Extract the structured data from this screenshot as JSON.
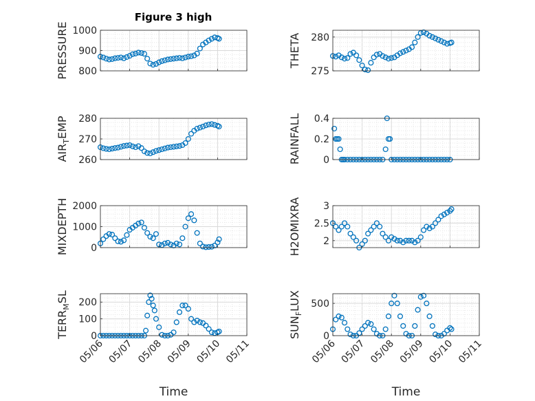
{
  "figure": {
    "title": "Figure 3 high",
    "marker_color": "#0072bd"
  },
  "chart_data": [
    {
      "type": "scatter",
      "id": "pressure",
      "ylabel": "PRESSURE",
      "ylim": [
        800,
        1000
      ],
      "yticks": [
        800,
        900,
        1000
      ],
      "grid": true,
      "x_days_from_0506": [
        0.0,
        0.1,
        0.2,
        0.3,
        0.4,
        0.5,
        0.6,
        0.7,
        0.8,
        0.9,
        1.0,
        1.1,
        1.2,
        1.3,
        1.4,
        1.5,
        1.6,
        1.7,
        1.8,
        1.9,
        2.0,
        2.1,
        2.2,
        2.3,
        2.4,
        2.5,
        2.6,
        2.7,
        2.8,
        2.9,
        3.0,
        3.1,
        3.2,
        3.3,
        3.4,
        3.5,
        3.6,
        3.7,
        3.8,
        3.9,
        4.0,
        4.05
      ],
      "y": [
        870,
        866,
        860,
        856,
        858,
        862,
        864,
        866,
        862,
        868,
        874,
        882,
        885,
        890,
        888,
        884,
        860,
        836,
        830,
        834,
        842,
        848,
        852,
        856,
        858,
        860,
        862,
        864,
        862,
        866,
        870,
        872,
        876,
        885,
        910,
        930,
        940,
        950,
        958,
        965,
        962,
        958
      ]
    },
    {
      "type": "scatter",
      "id": "theta",
      "ylabel": "THETA",
      "ylim": [
        275,
        281
      ],
      "yticks": [
        275,
        280
      ],
      "grid": true,
      "x_days_from_0506": [
        0.0,
        0.1,
        0.2,
        0.3,
        0.4,
        0.5,
        0.6,
        0.7,
        0.8,
        0.9,
        1.0,
        1.1,
        1.2,
        1.3,
        1.4,
        1.5,
        1.6,
        1.7,
        1.8,
        1.9,
        2.0,
        2.1,
        2.2,
        2.3,
        2.4,
        2.5,
        2.6,
        2.7,
        2.8,
        2.9,
        3.0,
        3.1,
        3.2,
        3.3,
        3.4,
        3.5,
        3.6,
        3.7,
        3.8,
        3.9,
        4.0,
        4.05
      ],
      "y": [
        277.2,
        277.1,
        277.3,
        277.0,
        276.8,
        276.9,
        277.5,
        277.7,
        277.3,
        276.6,
        275.8,
        275.2,
        275.1,
        276.2,
        277.0,
        277.4,
        277.5,
        277.2,
        277.0,
        276.8,
        276.9,
        277.0,
        277.3,
        277.6,
        277.8,
        278.0,
        278.2,
        278.5,
        279.2,
        280.0,
        280.6,
        280.7,
        280.5,
        280.2,
        280.0,
        279.8,
        279.6,
        279.4,
        279.2,
        279.0,
        279.1,
        279.2
      ]
    },
    {
      "type": "scatter",
      "id": "airtemp",
      "ylabel": "AIR_TEMP",
      "ylim": [
        260,
        280
      ],
      "yticks": [
        260,
        270,
        280
      ],
      "grid": true,
      "x_days_from_0506": [
        0.0,
        0.1,
        0.2,
        0.3,
        0.4,
        0.5,
        0.6,
        0.7,
        0.8,
        0.9,
        1.0,
        1.1,
        1.2,
        1.3,
        1.4,
        1.5,
        1.6,
        1.7,
        1.8,
        1.9,
        2.0,
        2.1,
        2.2,
        2.3,
        2.4,
        2.5,
        2.6,
        2.7,
        2.8,
        2.9,
        3.0,
        3.1,
        3.2,
        3.3,
        3.4,
        3.5,
        3.6,
        3.7,
        3.8,
        3.9,
        4.0,
        4.05
      ],
      "y": [
        266,
        265.5,
        265.2,
        265.0,
        265.3,
        265.6,
        265.8,
        266.2,
        266.6,
        266.8,
        267.0,
        266.4,
        266.0,
        266.5,
        265.6,
        264.0,
        263.2,
        263.0,
        263.6,
        264.2,
        264.6,
        265.0,
        265.4,
        265.8,
        266.0,
        266.2,
        266.4,
        266.6,
        267.0,
        268.0,
        270.0,
        272.5,
        274.0,
        275.0,
        275.5,
        276.0,
        276.6,
        277.0,
        277.2,
        276.8,
        276.4,
        276.0
      ]
    },
    {
      "type": "scatter",
      "id": "rainfall",
      "ylabel": "RAINFALL",
      "ylim": [
        0,
        0.4
      ],
      "yticks": [
        0,
        0.2,
        0.4
      ],
      "grid": true,
      "x_days_from_0506": [
        0.05,
        0.1,
        0.15,
        0.2,
        0.25,
        0.3,
        0.35,
        0.4,
        0.5,
        0.6,
        0.7,
        0.8,
        0.9,
        1.0,
        1.1,
        1.2,
        1.3,
        1.4,
        1.5,
        1.6,
        1.7,
        1.8,
        1.85,
        1.9,
        1.95,
        2.0,
        2.1,
        2.2,
        2.3,
        2.4,
        2.5,
        2.6,
        2.7,
        2.8,
        2.9,
        3.0,
        3.1,
        3.2,
        3.3,
        3.4,
        3.5,
        3.6,
        3.7,
        3.8,
        3.9,
        4.0
      ],
      "y": [
        0.3,
        0.2,
        0.2,
        0.2,
        0.1,
        0,
        0,
        0,
        0,
        0,
        0,
        0,
        0,
        0,
        0,
        0,
        0,
        0,
        0,
        0,
        0,
        0.1,
        0.4,
        0.2,
        0.2,
        0,
        0,
        0,
        0,
        0,
        0,
        0,
        0,
        0,
        0,
        0,
        0,
        0,
        0,
        0,
        0,
        0,
        0,
        0,
        0,
        0
      ]
    },
    {
      "type": "scatter",
      "id": "mixdepth",
      "ylabel": "MIXDEPTH",
      "ylim": [
        0,
        2000
      ],
      "yticks": [
        0,
        1000,
        2000
      ],
      "grid": true,
      "x_days_from_0506": [
        0.0,
        0.1,
        0.2,
        0.3,
        0.4,
        0.5,
        0.6,
        0.7,
        0.8,
        0.9,
        1.0,
        1.1,
        1.2,
        1.3,
        1.4,
        1.5,
        1.6,
        1.7,
        1.8,
        1.9,
        2.0,
        2.1,
        2.2,
        2.3,
        2.4,
        2.5,
        2.6,
        2.7,
        2.8,
        2.9,
        3.0,
        3.1,
        3.2,
        3.3,
        3.4,
        3.5,
        3.6,
        3.7,
        3.8,
        3.9,
        4.0,
        4.05
      ],
      "y": [
        200,
        400,
        550,
        650,
        620,
        450,
        300,
        280,
        350,
        600,
        850,
        950,
        1050,
        1150,
        1200,
        950,
        700,
        520,
        450,
        650,
        150,
        120,
        200,
        230,
        150,
        100,
        200,
        150,
        450,
        1000,
        1400,
        1600,
        1300,
        700,
        200,
        50,
        20,
        30,
        40,
        100,
        250,
        400
      ]
    },
    {
      "type": "scatter",
      "id": "h2omixra",
      "ylabel": "H2OMIXRA",
      "ylim": [
        1.8,
        3.0
      ],
      "yticks": [
        2,
        2.5,
        3
      ],
      "grid": true,
      "x_days_from_0506": [
        0.0,
        0.1,
        0.2,
        0.3,
        0.4,
        0.5,
        0.6,
        0.7,
        0.8,
        0.9,
        1.0,
        1.1,
        1.2,
        1.3,
        1.4,
        1.5,
        1.6,
        1.7,
        1.8,
        1.9,
        2.0,
        2.1,
        2.2,
        2.3,
        2.4,
        2.5,
        2.6,
        2.7,
        2.8,
        2.9,
        3.0,
        3.1,
        3.2,
        3.3,
        3.4,
        3.5,
        3.6,
        3.7,
        3.8,
        3.9,
        4.0,
        4.05
      ],
      "y": [
        2.5,
        2.4,
        2.3,
        2.4,
        2.5,
        2.4,
        2.2,
        2.1,
        2.0,
        1.8,
        1.9,
        2.0,
        2.2,
        2.3,
        2.4,
        2.5,
        2.4,
        2.2,
        2.1,
        2.0,
        2.1,
        2.05,
        2.0,
        2.0,
        1.95,
        2.0,
        2.0,
        2.0,
        1.95,
        2.0,
        2.1,
        2.3,
        2.4,
        2.35,
        2.4,
        2.5,
        2.6,
        2.7,
        2.75,
        2.8,
        2.85,
        2.9
      ]
    },
    {
      "type": "scatter",
      "id": "terrmsl",
      "ylabel": "TERR_MSL",
      "ylim": [
        0,
        250
      ],
      "yticks": [
        0,
        100,
        200
      ],
      "grid": true,
      "x_days_from_0506": [
        0.0,
        0.1,
        0.2,
        0.3,
        0.4,
        0.5,
        0.6,
        0.7,
        0.8,
        0.9,
        1.0,
        1.1,
        1.2,
        1.3,
        1.4,
        1.5,
        1.55,
        1.6,
        1.65,
        1.7,
        1.75,
        1.8,
        1.85,
        1.9,
        2.0,
        2.1,
        2.2,
        2.3,
        2.4,
        2.5,
        2.6,
        2.7,
        2.8,
        2.9,
        3.0,
        3.1,
        3.2,
        3.3,
        3.4,
        3.5,
        3.6,
        3.7,
        3.8,
        3.9,
        4.0,
        4.05
      ],
      "y": [
        0,
        0,
        0,
        0,
        0,
        0,
        0,
        0,
        0,
        0,
        0,
        0,
        0,
        0,
        0,
        0,
        30,
        120,
        200,
        240,
        220,
        180,
        150,
        100,
        50,
        5,
        0,
        0,
        5,
        20,
        80,
        140,
        180,
        180,
        160,
        100,
        80,
        90,
        80,
        75,
        60,
        40,
        20,
        15,
        20,
        25
      ]
    },
    {
      "type": "scatter",
      "id": "sunflux",
      "ylabel": "SUN_FLUX",
      "ylim": [
        0,
        650
      ],
      "yticks": [
        0,
        500
      ],
      "grid": true,
      "x_days_from_0506": [
        0.0,
        0.1,
        0.2,
        0.3,
        0.4,
        0.5,
        0.6,
        0.7,
        0.8,
        0.9,
        1.0,
        1.1,
        1.2,
        1.3,
        1.4,
        1.5,
        1.6,
        1.7,
        1.8,
        1.9,
        2.0,
        2.1,
        2.2,
        2.3,
        2.4,
        2.5,
        2.6,
        2.7,
        2.8,
        2.9,
        3.0,
        3.1,
        3.2,
        3.3,
        3.4,
        3.5,
        3.6,
        3.7,
        3.8,
        3.9,
        4.0,
        4.05
      ],
      "y": [
        100,
        250,
        300,
        280,
        200,
        100,
        20,
        0,
        0,
        40,
        100,
        150,
        200,
        180,
        100,
        30,
        0,
        0,
        100,
        300,
        500,
        620,
        500,
        300,
        150,
        30,
        0,
        0,
        150,
        400,
        600,
        620,
        500,
        300,
        150,
        20,
        0,
        0,
        30,
        80,
        120,
        100
      ]
    }
  ],
  "x_axis": {
    "ticks": [
      "05/06",
      "05/07",
      "05/08",
      "05/09",
      "05/10",
      "05/11"
    ],
    "label": "Time"
  }
}
